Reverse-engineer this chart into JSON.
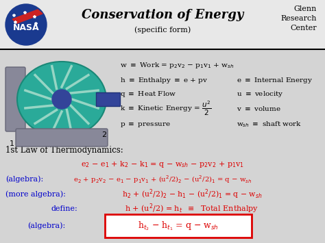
{
  "bg_color": "#d4d4d4",
  "title": "Conservation of Energy",
  "subtitle": "(specific form)",
  "glenn_text": "Glenn\nResearch\nCenter",
  "red_color": "#dd0000",
  "blue_color": "#0000cc",
  "black_color": "#000000",
  "figsize": [
    4.74,
    3.55
  ],
  "dpi": 100
}
